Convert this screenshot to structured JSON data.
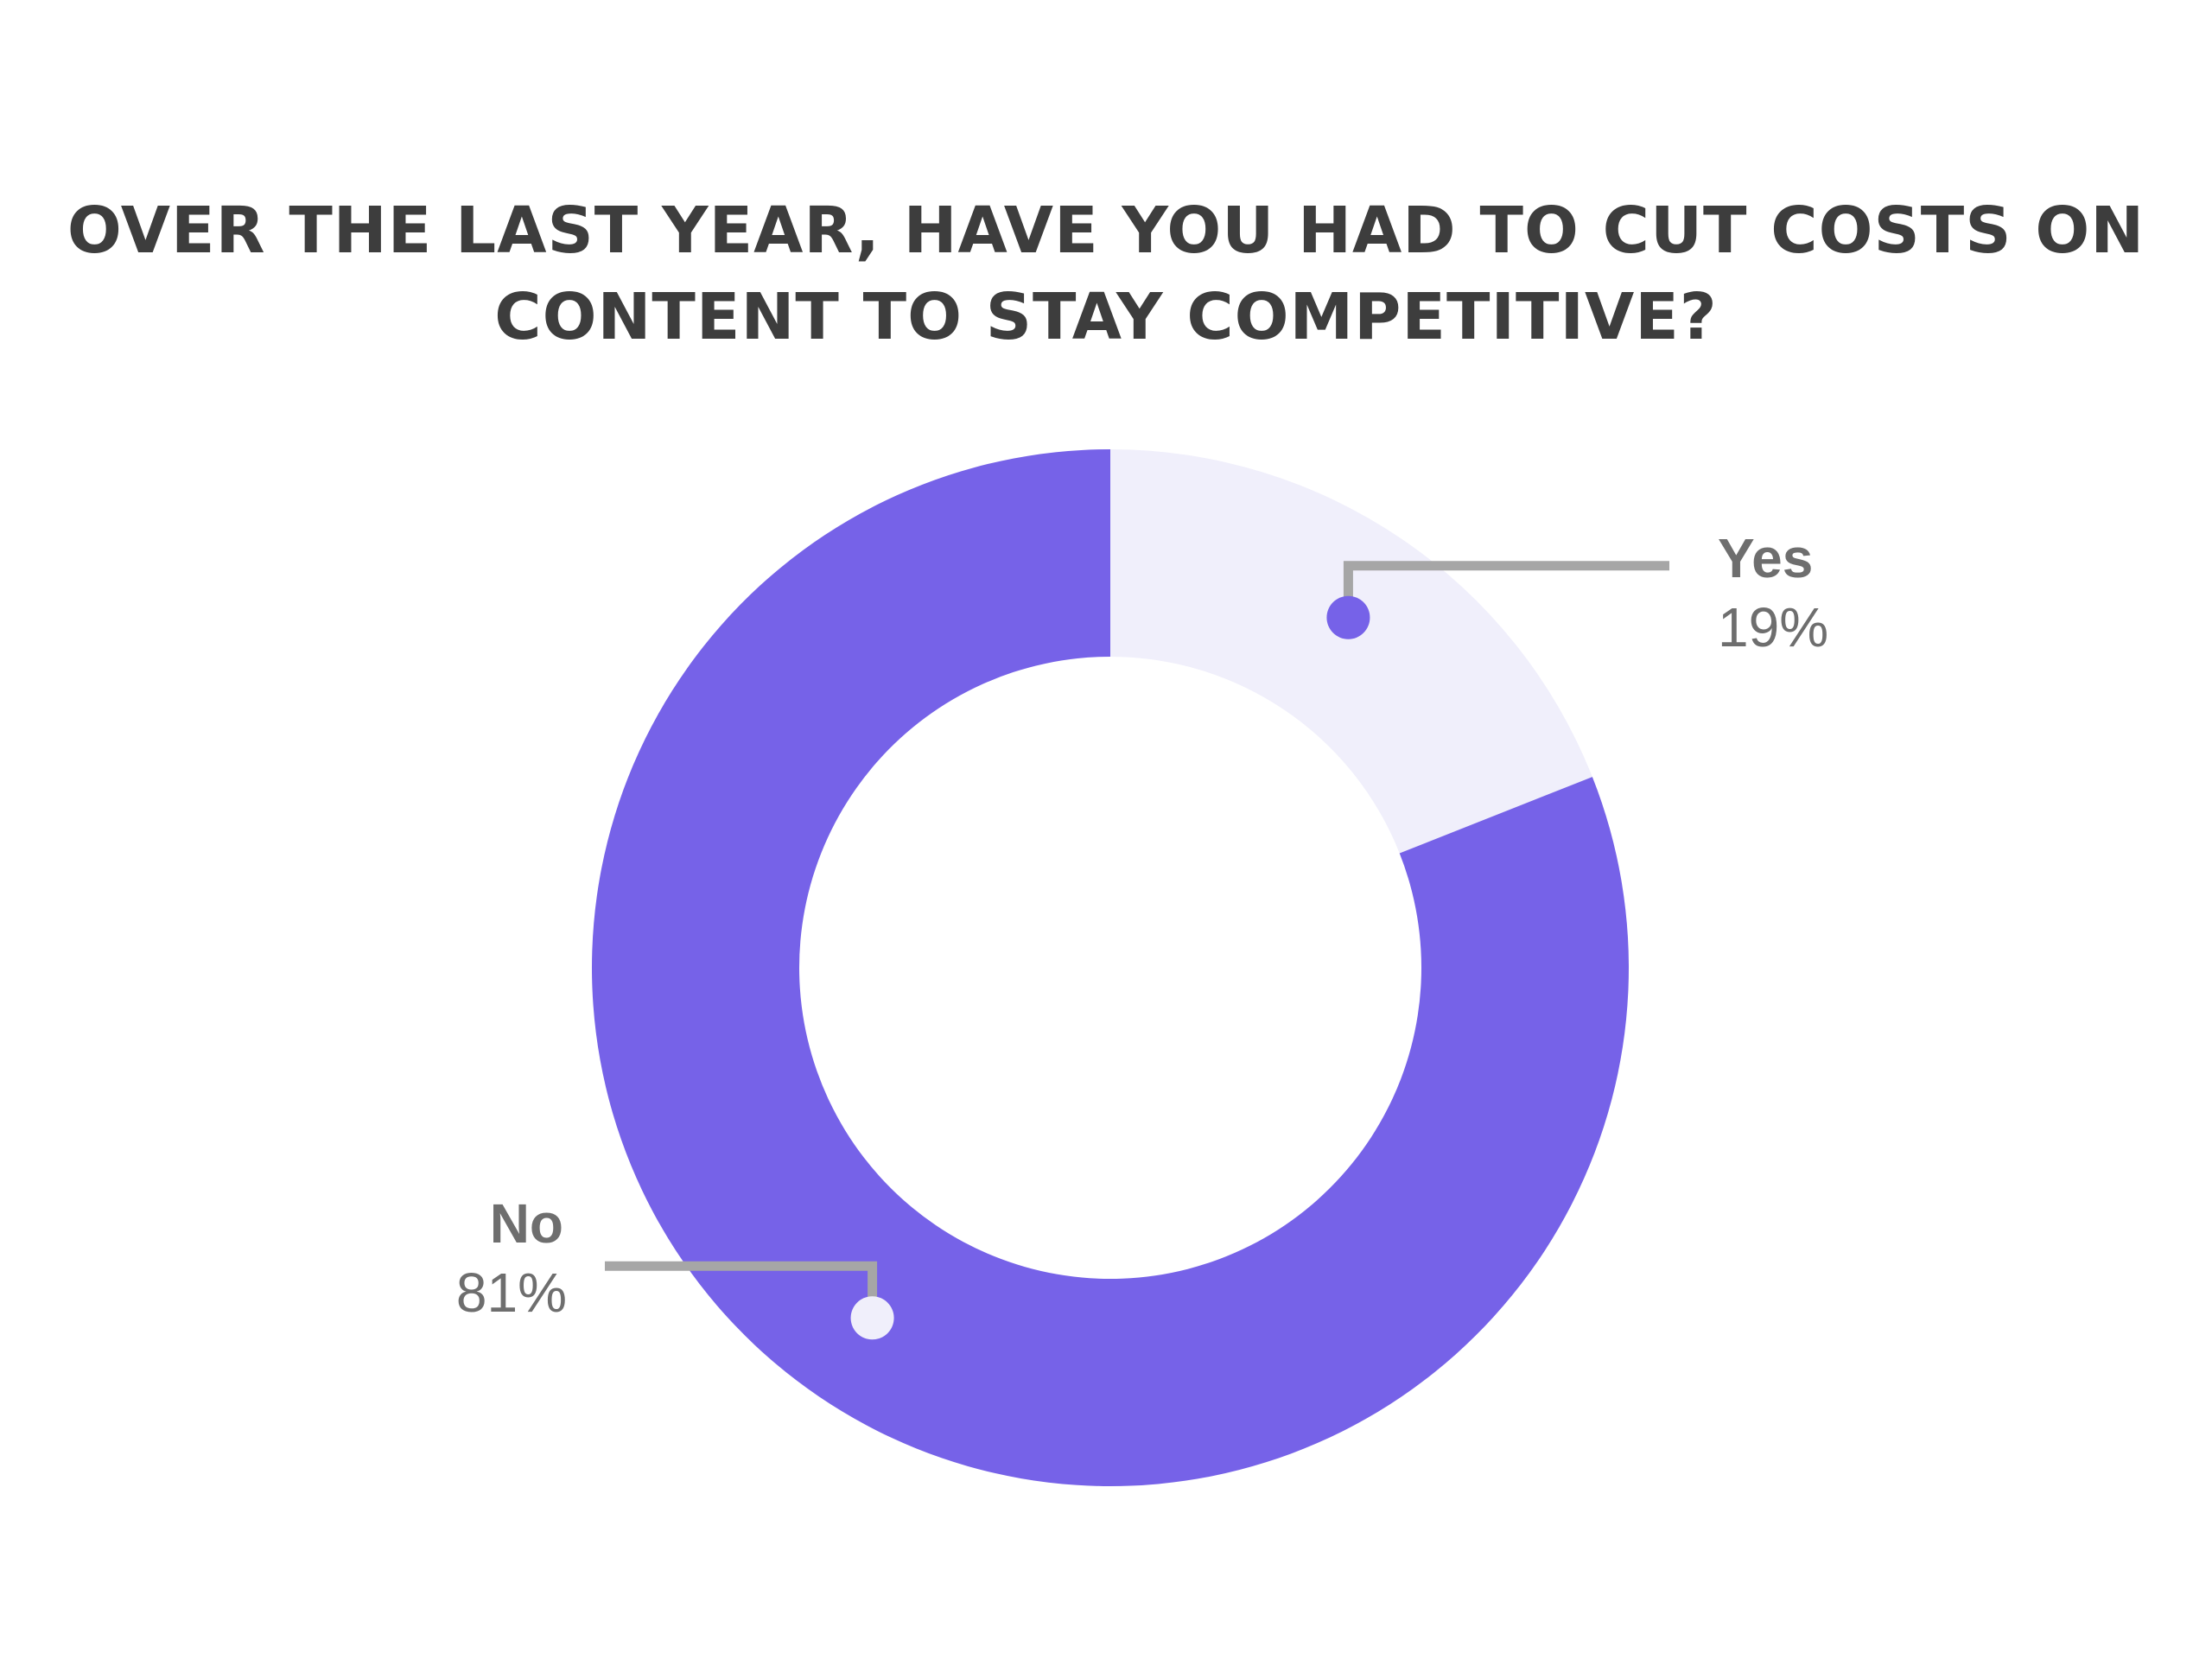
{
  "chart_data": {
    "type": "pie",
    "style": "donut",
    "title_lines": [
      "OVER THE LAST YEAR, HAVE YOU HAD TO CUT COSTS ON",
      "CONTENT TO STAY COMPETITIVE?"
    ],
    "categories": [
      "Yes",
      "No"
    ],
    "values": [
      19,
      81
    ],
    "value_labels": [
      "19%",
      "81%"
    ],
    "colors": [
      "#f0effb",
      "#7662e8"
    ],
    "leader_color": "#a6a6a6",
    "legend": "none"
  }
}
